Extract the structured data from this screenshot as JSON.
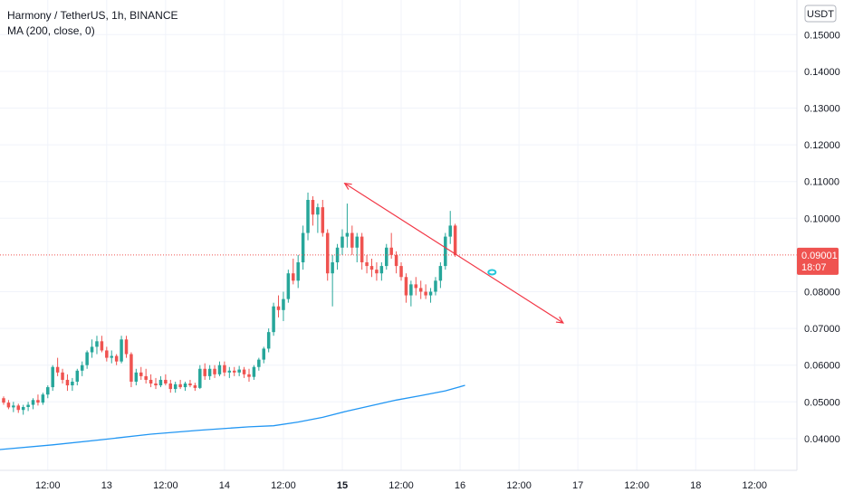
{
  "header": {
    "title": "Harmony / TetherUS, 1h, BINANCE",
    "indicator": "MA (200, close, 0)",
    "currency": "USDT"
  },
  "price_badge": {
    "price": "0.09001",
    "countdown": "18:07"
  },
  "colors": {
    "bull": "#26a69a",
    "bear": "#ef5350",
    "ma": "#2196f3",
    "trendline": "#f23645",
    "marker": "#26c6da",
    "price_line": "#ef5350",
    "grid": "#f0f3fa",
    "text": "#131722"
  },
  "chart_data": {
    "type": "candlestick",
    "symbol": "Harmony / TetherUS",
    "interval": "1h",
    "exchange": "BINANCE",
    "ylim": [
      0.033,
      0.16
    ],
    "y_ticks": [
      "0.04000",
      "0.05000",
      "0.06000",
      "0.07000",
      "0.08000",
      "0.10000",
      "0.11000",
      "0.12000",
      "0.13000",
      "0.14000",
      "0.15000"
    ],
    "x_ticks": [
      {
        "label": "12:00",
        "t": 9
      },
      {
        "label": "13",
        "t": 21,
        "bold": false
      },
      {
        "label": "12:00",
        "t": 33
      },
      {
        "label": "14",
        "t": 45
      },
      {
        "label": "12:00",
        "t": 57
      },
      {
        "label": "15",
        "t": 69,
        "bold": true
      },
      {
        "label": "12:00",
        "t": 81
      },
      {
        "label": "16",
        "t": 93
      },
      {
        "label": "12:00",
        "t": 105
      },
      {
        "label": "17",
        "t": 117
      },
      {
        "label": "12:00",
        "t": 129
      },
      {
        "label": "18",
        "t": 141
      },
      {
        "label": "12:00",
        "t": 153
      }
    ],
    "current_price": 0.09001,
    "candles": [
      [
        0.051,
        0.0515,
        0.0492,
        0.0498
      ],
      [
        0.0498,
        0.0505,
        0.048,
        0.0485
      ],
      [
        0.0485,
        0.05,
        0.0472,
        0.049
      ],
      [
        0.049,
        0.0495,
        0.047,
        0.0478
      ],
      [
        0.0478,
        0.0492,
        0.0465,
        0.0486
      ],
      [
        0.0486,
        0.05,
        0.0475,
        0.0492
      ],
      [
        0.0492,
        0.051,
        0.048,
        0.0505
      ],
      [
        0.0505,
        0.052,
        0.049,
        0.0498
      ],
      [
        0.0498,
        0.0525,
        0.0492,
        0.052
      ],
      [
        0.052,
        0.0545,
        0.051,
        0.054
      ],
      [
        0.054,
        0.06,
        0.053,
        0.0595
      ],
      [
        0.0595,
        0.062,
        0.057,
        0.058
      ],
      [
        0.058,
        0.059,
        0.055,
        0.056
      ],
      [
        0.056,
        0.0575,
        0.053,
        0.0545
      ],
      [
        0.0545,
        0.0565,
        0.053,
        0.0555
      ],
      [
        0.0555,
        0.059,
        0.0545,
        0.0585
      ],
      [
        0.0585,
        0.061,
        0.057,
        0.06
      ],
      [
        0.06,
        0.064,
        0.059,
        0.0635
      ],
      [
        0.0635,
        0.067,
        0.062,
        0.065
      ],
      [
        0.065,
        0.068,
        0.063,
        0.0665
      ],
      [
        0.0665,
        0.068,
        0.0635,
        0.064
      ],
      [
        0.064,
        0.065,
        0.061,
        0.062
      ],
      [
        0.062,
        0.064,
        0.0605,
        0.0625
      ],
      [
        0.0625,
        0.063,
        0.06,
        0.061
      ],
      [
        0.061,
        0.068,
        0.0605,
        0.067
      ],
      [
        0.067,
        0.068,
        0.062,
        0.063
      ],
      [
        0.063,
        0.0635,
        0.054,
        0.0555
      ],
      [
        0.0555,
        0.059,
        0.0545,
        0.058
      ],
      [
        0.058,
        0.0595,
        0.056,
        0.057
      ],
      [
        0.057,
        0.059,
        0.055,
        0.056
      ],
      [
        0.056,
        0.0575,
        0.054,
        0.055
      ],
      [
        0.055,
        0.0565,
        0.0535,
        0.0545
      ],
      [
        0.0545,
        0.057,
        0.054,
        0.056
      ],
      [
        0.056,
        0.0575,
        0.0545,
        0.055
      ],
      [
        0.055,
        0.056,
        0.0525,
        0.0535
      ],
      [
        0.0535,
        0.0555,
        0.0525,
        0.0548
      ],
      [
        0.0548,
        0.056,
        0.0535,
        0.054
      ],
      [
        0.054,
        0.0555,
        0.053,
        0.055
      ],
      [
        0.055,
        0.056,
        0.054,
        0.0545
      ],
      [
        0.0545,
        0.0552,
        0.053,
        0.0538
      ],
      [
        0.0538,
        0.06,
        0.0535,
        0.059
      ],
      [
        0.059,
        0.0605,
        0.056,
        0.057
      ],
      [
        0.057,
        0.06,
        0.056,
        0.059
      ],
      [
        0.059,
        0.06,
        0.0565,
        0.0575
      ],
      [
        0.0575,
        0.061,
        0.057,
        0.06
      ],
      [
        0.06,
        0.061,
        0.057,
        0.058
      ],
      [
        0.058,
        0.0595,
        0.0565,
        0.0585
      ],
      [
        0.0585,
        0.0595,
        0.057,
        0.058
      ],
      [
        0.058,
        0.0598,
        0.057,
        0.0588
      ],
      [
        0.0588,
        0.0595,
        0.0565,
        0.0575
      ],
      [
        0.0575,
        0.059,
        0.0555,
        0.0568
      ],
      [
        0.0568,
        0.06,
        0.056,
        0.0595
      ],
      [
        0.0595,
        0.062,
        0.0585,
        0.0615
      ],
      [
        0.0615,
        0.065,
        0.0605,
        0.0645
      ],
      [
        0.0645,
        0.07,
        0.0635,
        0.069
      ],
      [
        0.069,
        0.077,
        0.068,
        0.076
      ],
      [
        0.076,
        0.079,
        0.073,
        0.075
      ],
      [
        0.075,
        0.08,
        0.072,
        0.078
      ],
      [
        0.078,
        0.086,
        0.077,
        0.085
      ],
      [
        0.085,
        0.089,
        0.082,
        0.083
      ],
      [
        0.083,
        0.09,
        0.081,
        0.088
      ],
      [
        0.088,
        0.098,
        0.086,
        0.096
      ],
      [
        0.096,
        0.107,
        0.094,
        0.105
      ],
      [
        0.105,
        0.106,
        0.098,
        0.101
      ],
      [
        0.101,
        0.104,
        0.096,
        0.103
      ],
      [
        0.103,
        0.105,
        0.095,
        0.096
      ],
      [
        0.096,
        0.097,
        0.083,
        0.085
      ],
      [
        0.085,
        0.09,
        0.076,
        0.088
      ],
      [
        0.088,
        0.093,
        0.086,
        0.092
      ],
      [
        0.092,
        0.097,
        0.09,
        0.095
      ],
      [
        0.095,
        0.104,
        0.092,
        0.096
      ],
      [
        0.096,
        0.098,
        0.09,
        0.092
      ],
      [
        0.092,
        0.096,
        0.088,
        0.095
      ],
      [
        0.095,
        0.096,
        0.086,
        0.088
      ],
      [
        0.088,
        0.09,
        0.085,
        0.087
      ],
      [
        0.087,
        0.089,
        0.084,
        0.086
      ],
      [
        0.086,
        0.088,
        0.083,
        0.085
      ],
      [
        0.085,
        0.088,
        0.083,
        0.087
      ],
      [
        0.087,
        0.093,
        0.086,
        0.092
      ],
      [
        0.092,
        0.096,
        0.089,
        0.09
      ],
      [
        0.09,
        0.091,
        0.085,
        0.087
      ],
      [
        0.087,
        0.088,
        0.083,
        0.084
      ],
      [
        0.084,
        0.085,
        0.077,
        0.079
      ],
      [
        0.079,
        0.083,
        0.076,
        0.082
      ],
      [
        0.082,
        0.084,
        0.079,
        0.081
      ],
      [
        0.081,
        0.083,
        0.078,
        0.08
      ],
      [
        0.08,
        0.082,
        0.078,
        0.079
      ],
      [
        0.079,
        0.081,
        0.077,
        0.08
      ],
      [
        0.08,
        0.084,
        0.079,
        0.083
      ],
      [
        0.083,
        0.088,
        0.081,
        0.087
      ],
      [
        0.087,
        0.096,
        0.086,
        0.095
      ],
      [
        0.095,
        0.102,
        0.093,
        0.098
      ],
      [
        0.098,
        0.0985,
        0.0895,
        0.09001
      ]
    ],
    "ma200": [
      [
        -1,
        0.037
      ],
      [
        10,
        0.0383
      ],
      [
        20,
        0.0397
      ],
      [
        30,
        0.0412
      ],
      [
        40,
        0.0423
      ],
      [
        50,
        0.0432
      ],
      [
        55,
        0.0435
      ],
      [
        60,
        0.0445
      ],
      [
        65,
        0.0458
      ],
      [
        70,
        0.0475
      ],
      [
        75,
        0.049
      ],
      [
        80,
        0.0505
      ],
      [
        85,
        0.0517
      ],
      [
        90,
        0.053
      ],
      [
        94,
        0.0545
      ]
    ],
    "trendline": {
      "from": [
        69.5,
        0.1095
      ],
      "to": [
        114,
        0.0715
      ]
    },
    "marker": {
      "t": 99.5,
      "v": 0.0853
    }
  }
}
